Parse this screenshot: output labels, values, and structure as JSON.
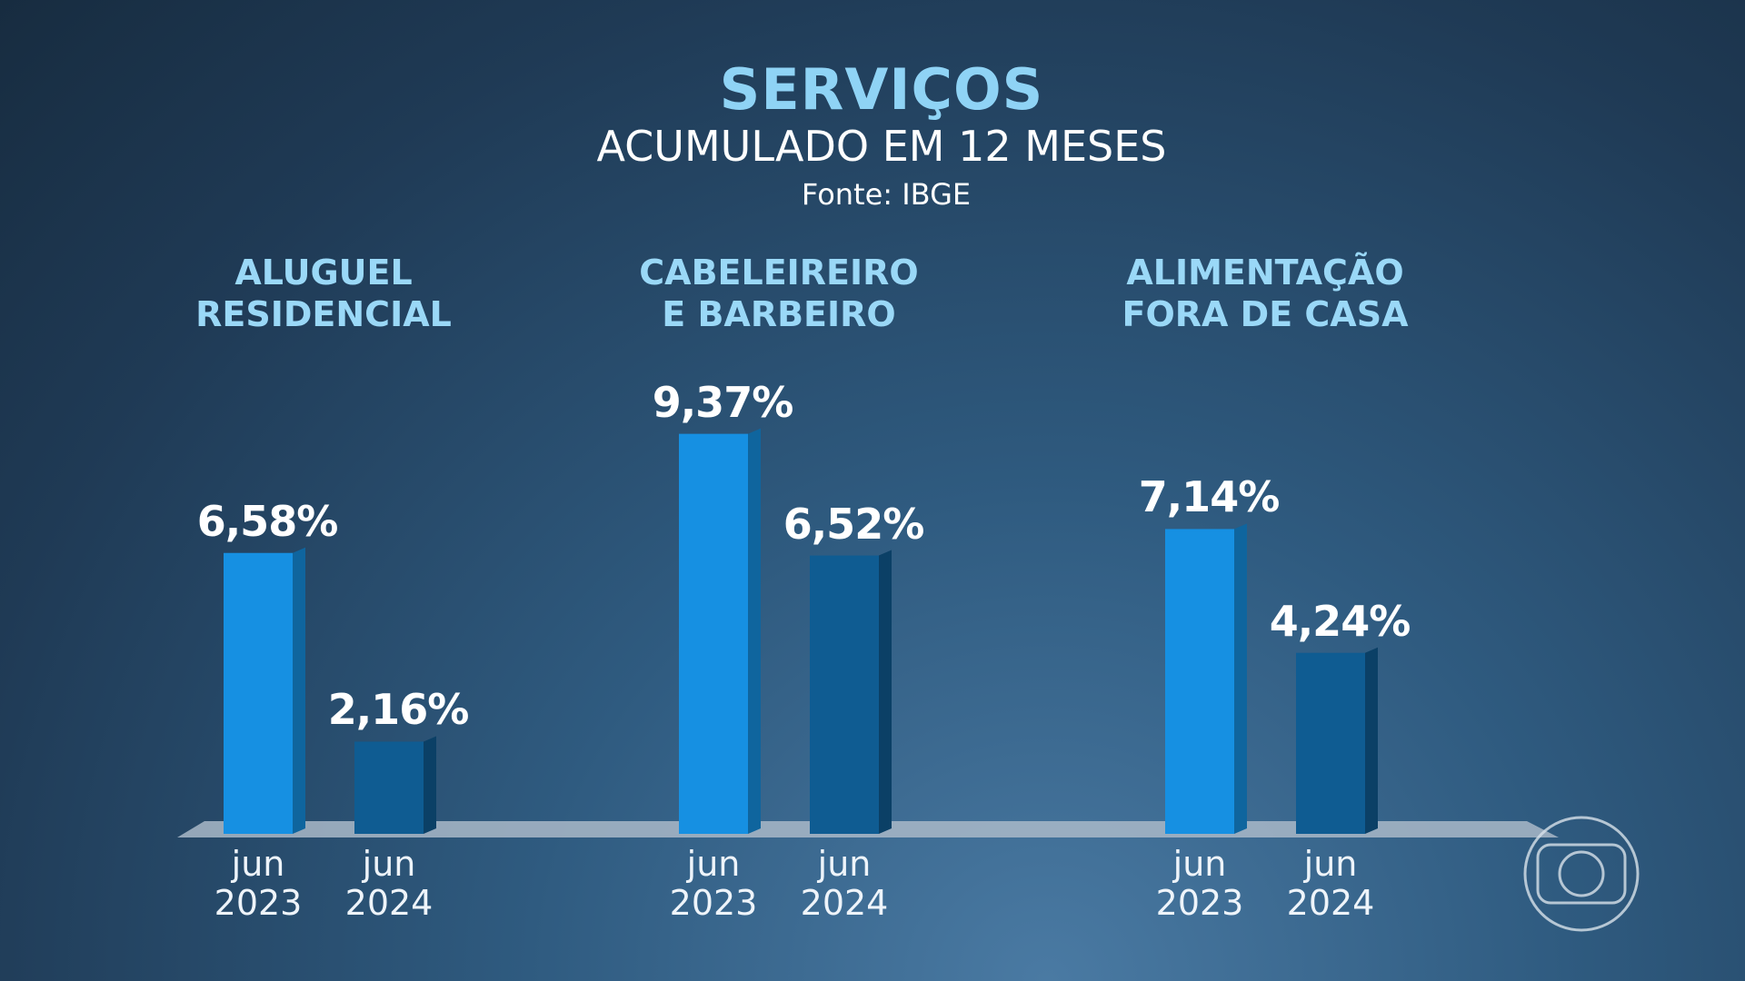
{
  "chart_data": {
    "type": "bar",
    "title": "SERVIÇOS",
    "subtitle": "ACUMULADO EM 12 MESES",
    "source": "Fonte: IBGE",
    "categories": [
      "ALUGUEL RESIDENCIAL",
      "CABELEIREIRO E BARBEIRO",
      "ALIMENTAÇÃO FORA DE CASA"
    ],
    "series": [
      {
        "name": "jun 2023",
        "color": "#1690e2",
        "values": [
          6.58,
          9.37,
          7.14
        ],
        "value_labels": [
          "6,58%",
          "9,37%",
          "7,14%"
        ]
      },
      {
        "name": "jun 2024",
        "color": "#0f5c92",
        "values": [
          2.16,
          6.52,
          4.24
        ],
        "value_labels": [
          "2,16%",
          "6,52%",
          "4,24%"
        ]
      }
    ]
  }
}
